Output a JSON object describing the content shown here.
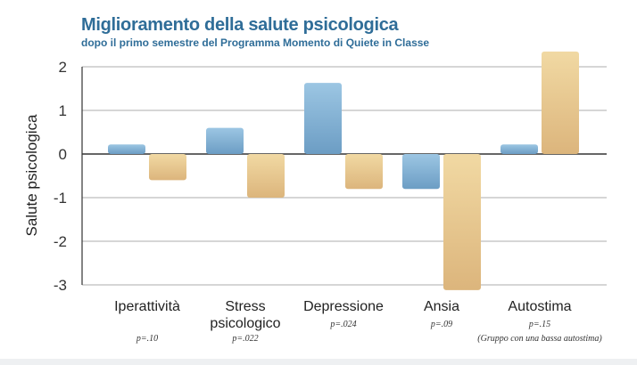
{
  "chart_data": {
    "type": "bar",
    "title": "Miglioramento della salute psicologica",
    "subtitle": "dopo il primo semestre del Programma Momento di Quiete in Classe",
    "ylabel": "Salute psicologica",
    "xlabel": "",
    "ylim": [
      -3,
      2
    ],
    "yticks": [
      "2",
      "1",
      "0",
      "-1",
      "-2",
      "-3"
    ],
    "grid": true,
    "categories": [
      {
        "label_lines": [
          "Iperattività"
        ],
        "p_value": "p=.10",
        "note": ""
      },
      {
        "label_lines": [
          "Stress",
          "psicologico"
        ],
        "p_value": "p=.022",
        "note": ""
      },
      {
        "label_lines": [
          "Depressione"
        ],
        "p_value": "p=.024",
        "note": ""
      },
      {
        "label_lines": [
          "Ansia"
        ],
        "p_value": "p=.09",
        "note": ""
      },
      {
        "label_lines": [
          "Autostima"
        ],
        "p_value": "p=.15",
        "note": "(Gruppo con una bassa autostima)"
      }
    ],
    "series": [
      {
        "values": [
          0.22,
          0.6,
          1.63,
          -0.8,
          0.22
        ],
        "color_top": "#9cc6e3",
        "color_bottom": "#6c9dc4"
      },
      {
        "values": [
          -0.6,
          -1.0,
          -0.8,
          -3.12,
          2.35
        ],
        "color_top": "#f1d9a3",
        "color_bottom": "#dcb57c"
      }
    ]
  }
}
